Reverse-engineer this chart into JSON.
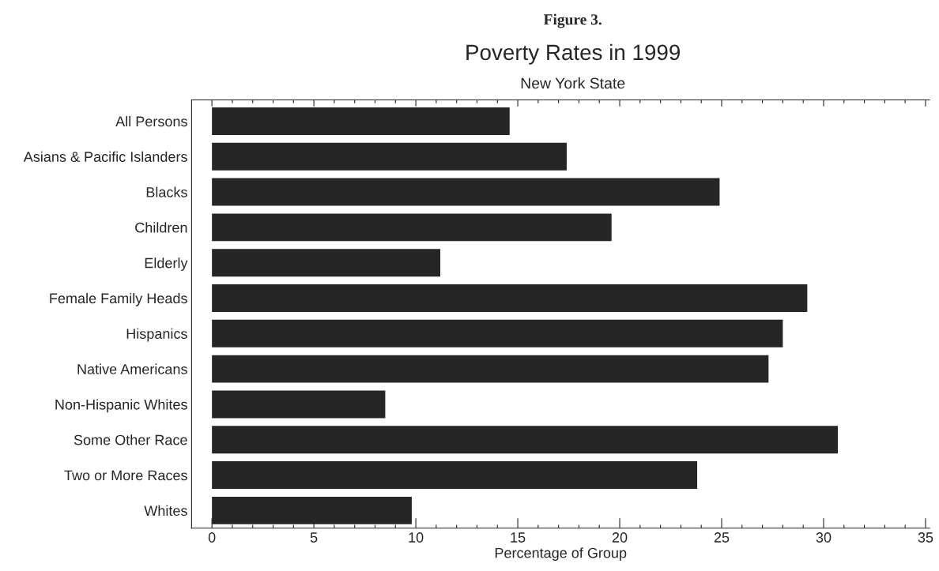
{
  "chart_data": {
    "type": "bar",
    "orientation": "horizontal",
    "title": "Poverty Rates in 1999",
    "subtitle": "New York State",
    "xlabel": "Percentage of Group",
    "annotations": [
      "Figure 3."
    ],
    "categories": [
      "All Persons",
      "Asians & Pacific Islanders",
      "Blacks",
      "Children",
      "Elderly",
      "Female Family Heads",
      "Hispanics",
      "Native Americans",
      "Non-Hispanic Whites",
      "Some Other Race",
      "Two or More Races",
      "Whites"
    ],
    "values": [
      14.6,
      17.4,
      24.9,
      19.6,
      11.2,
      29.2,
      28.0,
      27.3,
      8.5,
      30.7,
      23.8,
      9.8
    ],
    "color": "#262626",
    "xlim": [
      -1,
      35.2
    ],
    "xticks": [
      0,
      {
        "value": 1,
        "label": null
      },
      {
        "value": 2,
        "label": null
      },
      {
        "value": 3,
        "label": null
      },
      {
        "value": 4,
        "label": null
      },
      5,
      {
        "value": 6,
        "label": null
      },
      {
        "value": 7,
        "label": null
      },
      {
        "value": 8,
        "label": null
      },
      {
        "value": 9,
        "label": null
      },
      10,
      {
        "value": 11,
        "label": null
      },
      {
        "value": 12,
        "label": null
      },
      {
        "value": 13,
        "label": null
      },
      {
        "value": 14,
        "label": null
      },
      15,
      {
        "value": 16,
        "label": null
      },
      {
        "value": 17,
        "label": null
      },
      {
        "value": 18,
        "label": null
      },
      {
        "value": 19,
        "label": null
      },
      20,
      {
        "value": 21,
        "label": null
      },
      {
        "value": 22,
        "label": null
      },
      {
        "value": 23,
        "label": null
      },
      {
        "value": 24,
        "label": null
      },
      25,
      {
        "value": 26,
        "label": null
      },
      {
        "value": 27,
        "label": null
      },
      {
        "value": 28,
        "label": null
      },
      {
        "value": 29,
        "label": null
      },
      30,
      {
        "value": 31,
        "label": null
      },
      {
        "value": 32,
        "label": null
      },
      {
        "value": 33,
        "label": null
      },
      {
        "value": 34,
        "label": null
      },
      35
    ],
    "grid": false,
    "legend": false
  }
}
